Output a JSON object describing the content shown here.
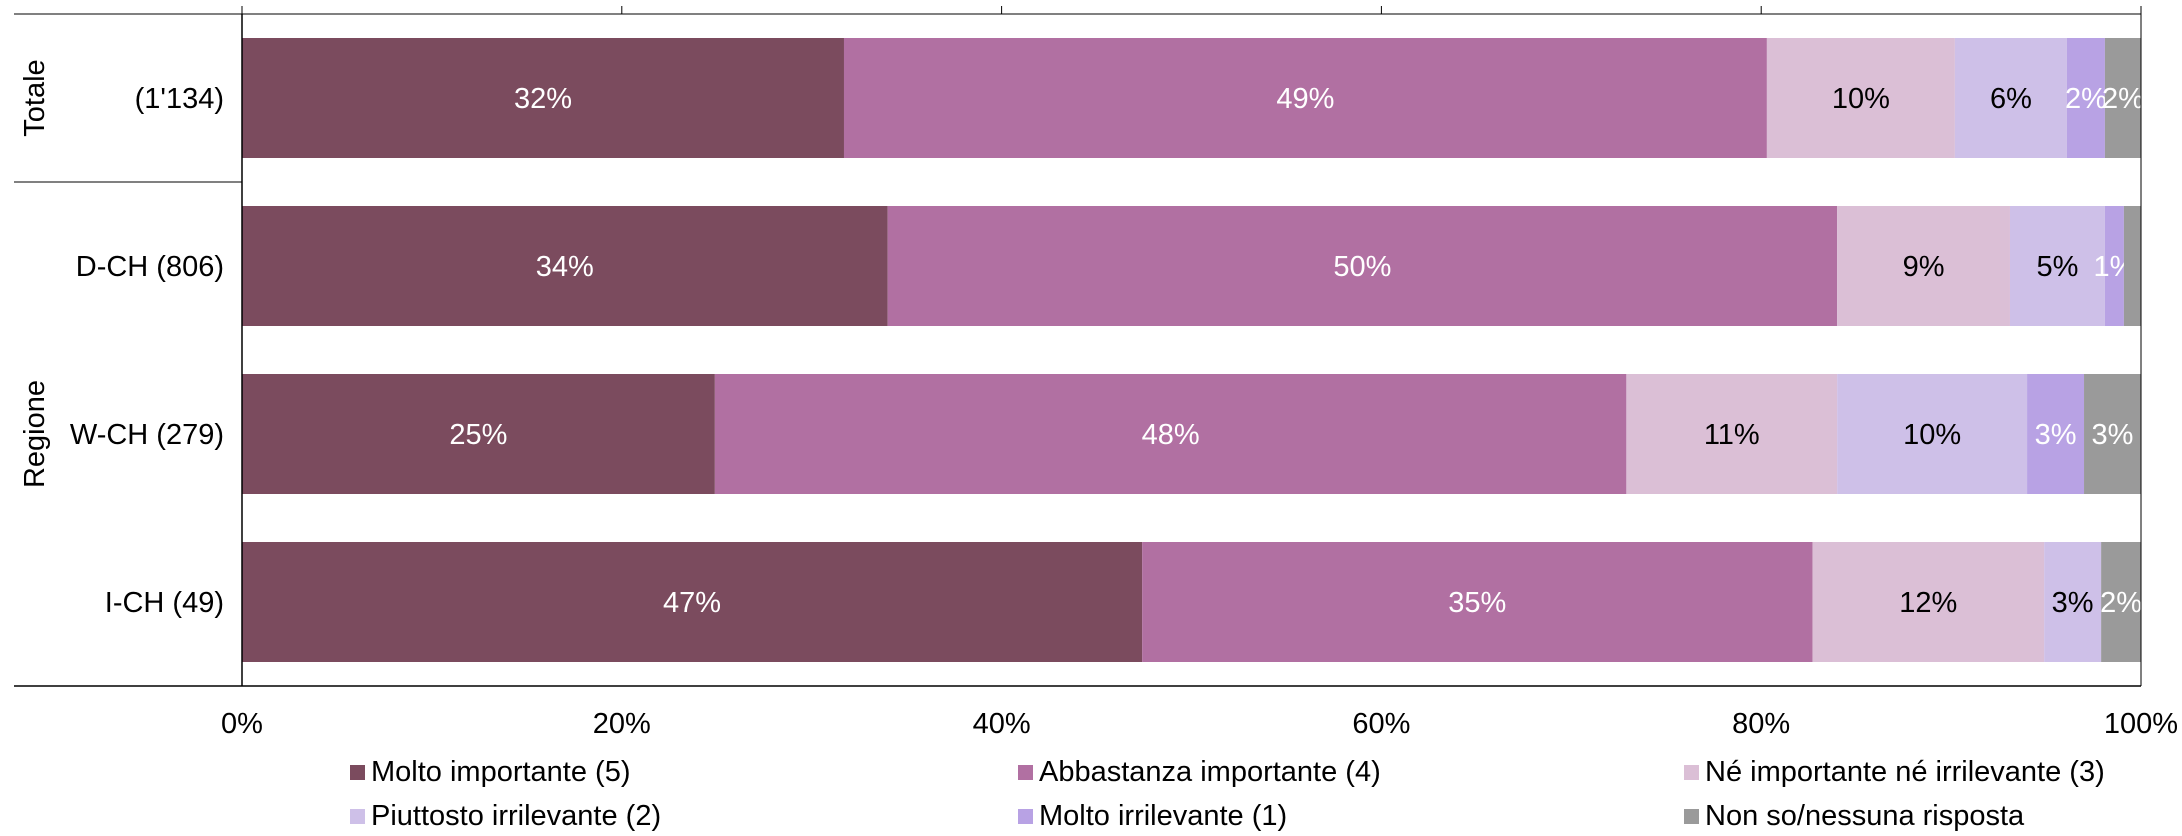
{
  "chart_data": {
    "type": "bar",
    "orientation": "horizontal",
    "stacked": true,
    "categories": [
      "(1'134)",
      "D-CH (806)",
      "W-CH (279)",
      "I-CH (49)"
    ],
    "groups": [
      {
        "label": "Totale",
        "categories": [
          "(1'134)"
        ]
      },
      {
        "label": "Regione",
        "categories": [
          "D-CH (806)",
          "W-CH (279)",
          "I-CH (49)"
        ]
      }
    ],
    "series": [
      {
        "name": "Molto importante (5)",
        "color": "#7b4b5e",
        "label_color": "#ffffff",
        "values": [
          31.7,
          34.0,
          24.9,
          47.4
        ],
        "labels": [
          "32%",
          "34%",
          "25%",
          "47%"
        ]
      },
      {
        "name": "Abbastanza importante (4)",
        "color": "#b170a2",
        "label_color": "#ffffff",
        "values": [
          48.6,
          50.0,
          48.0,
          35.3
        ],
        "labels": [
          "49%",
          "50%",
          "48%",
          "35%"
        ]
      },
      {
        "name": "Né importante né irrilevante (3)",
        "color": "#dbbfd6",
        "label_color": "#000000",
        "values": [
          9.9,
          9.1,
          11.1,
          12.2
        ],
        "labels": [
          "10%",
          "9%",
          "11%",
          "12%"
        ]
      },
      {
        "name": "Piuttosto irrilevante (2)",
        "color": "#cec0e8",
        "label_color": "#000000",
        "values": [
          5.9,
          5.0,
          10.0,
          3.0
        ],
        "labels": [
          "6%",
          "5%",
          "10%",
          "3%"
        ]
      },
      {
        "name": "Molto irrilevante (1)",
        "color": "#b8a2e4",
        "label_color": "#ffffff",
        "values": [
          2.0,
          1.0,
          3.0,
          0.0
        ],
        "labels": [
          "2%",
          "1%",
          "3%",
          ""
        ]
      },
      {
        "name": "Non so/nessuna risposta",
        "color": "#9a9a9a",
        "label_color": "#ffffff",
        "values": [
          1.9,
          0.9,
          3.0,
          2.1
        ],
        "labels": [
          "2%",
          "",
          "3%",
          "2%"
        ]
      }
    ],
    "xlim": [
      0,
      100
    ],
    "xticks": [
      0,
      20,
      40,
      60,
      80,
      100
    ],
    "xtick_labels": [
      "0%",
      "20%",
      "40%",
      "60%",
      "80%",
      "100%"
    ],
    "legend": "bottom",
    "grid": false
  }
}
